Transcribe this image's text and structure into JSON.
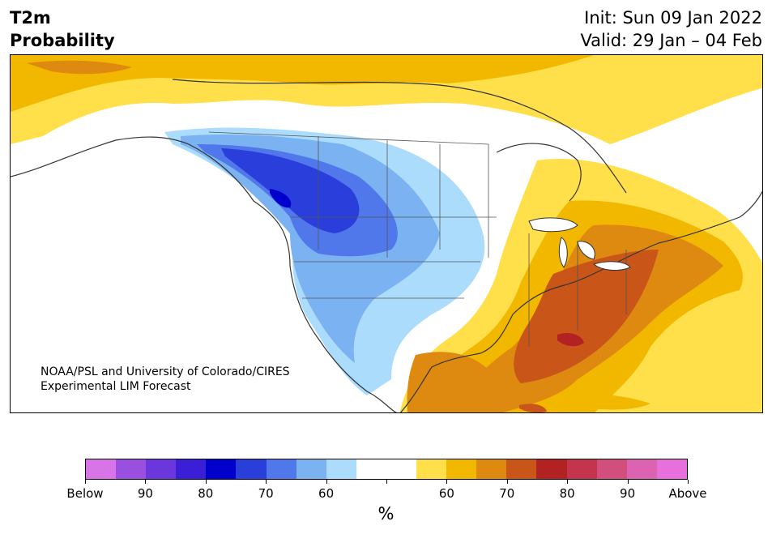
{
  "header": {
    "variable": "T2m",
    "product": "Probability",
    "init": "Init: Sun 09 Jan 2022",
    "valid": "Valid: 29 Jan – 04 Feb"
  },
  "map": {
    "region": "North America",
    "credit_line1": "NOAA/PSL and University of Colorado/CIRES",
    "credit_line2": "Experimental LIM Forecast"
  },
  "colorbar": {
    "unit": "%",
    "colors": [
      "#d874e8",
      "#9a4fe0",
      "#6b36db",
      "#3b1fd6",
      "#0000cc",
      "#2a3edc",
      "#5078ea",
      "#7ab2f2",
      "#acdcfc",
      "#ffffff",
      "#ffffff",
      "#ffe04a",
      "#f2b800",
      "#de8a10",
      "#c95518",
      "#b22222",
      "#c4344c",
      "#d24e7c",
      "#dc62b2",
      "#e870dc"
    ],
    "labels": [
      "Below",
      "90",
      "80",
      "70",
      "60",
      "60",
      "70",
      "80",
      "90",
      "Above"
    ]
  }
}
